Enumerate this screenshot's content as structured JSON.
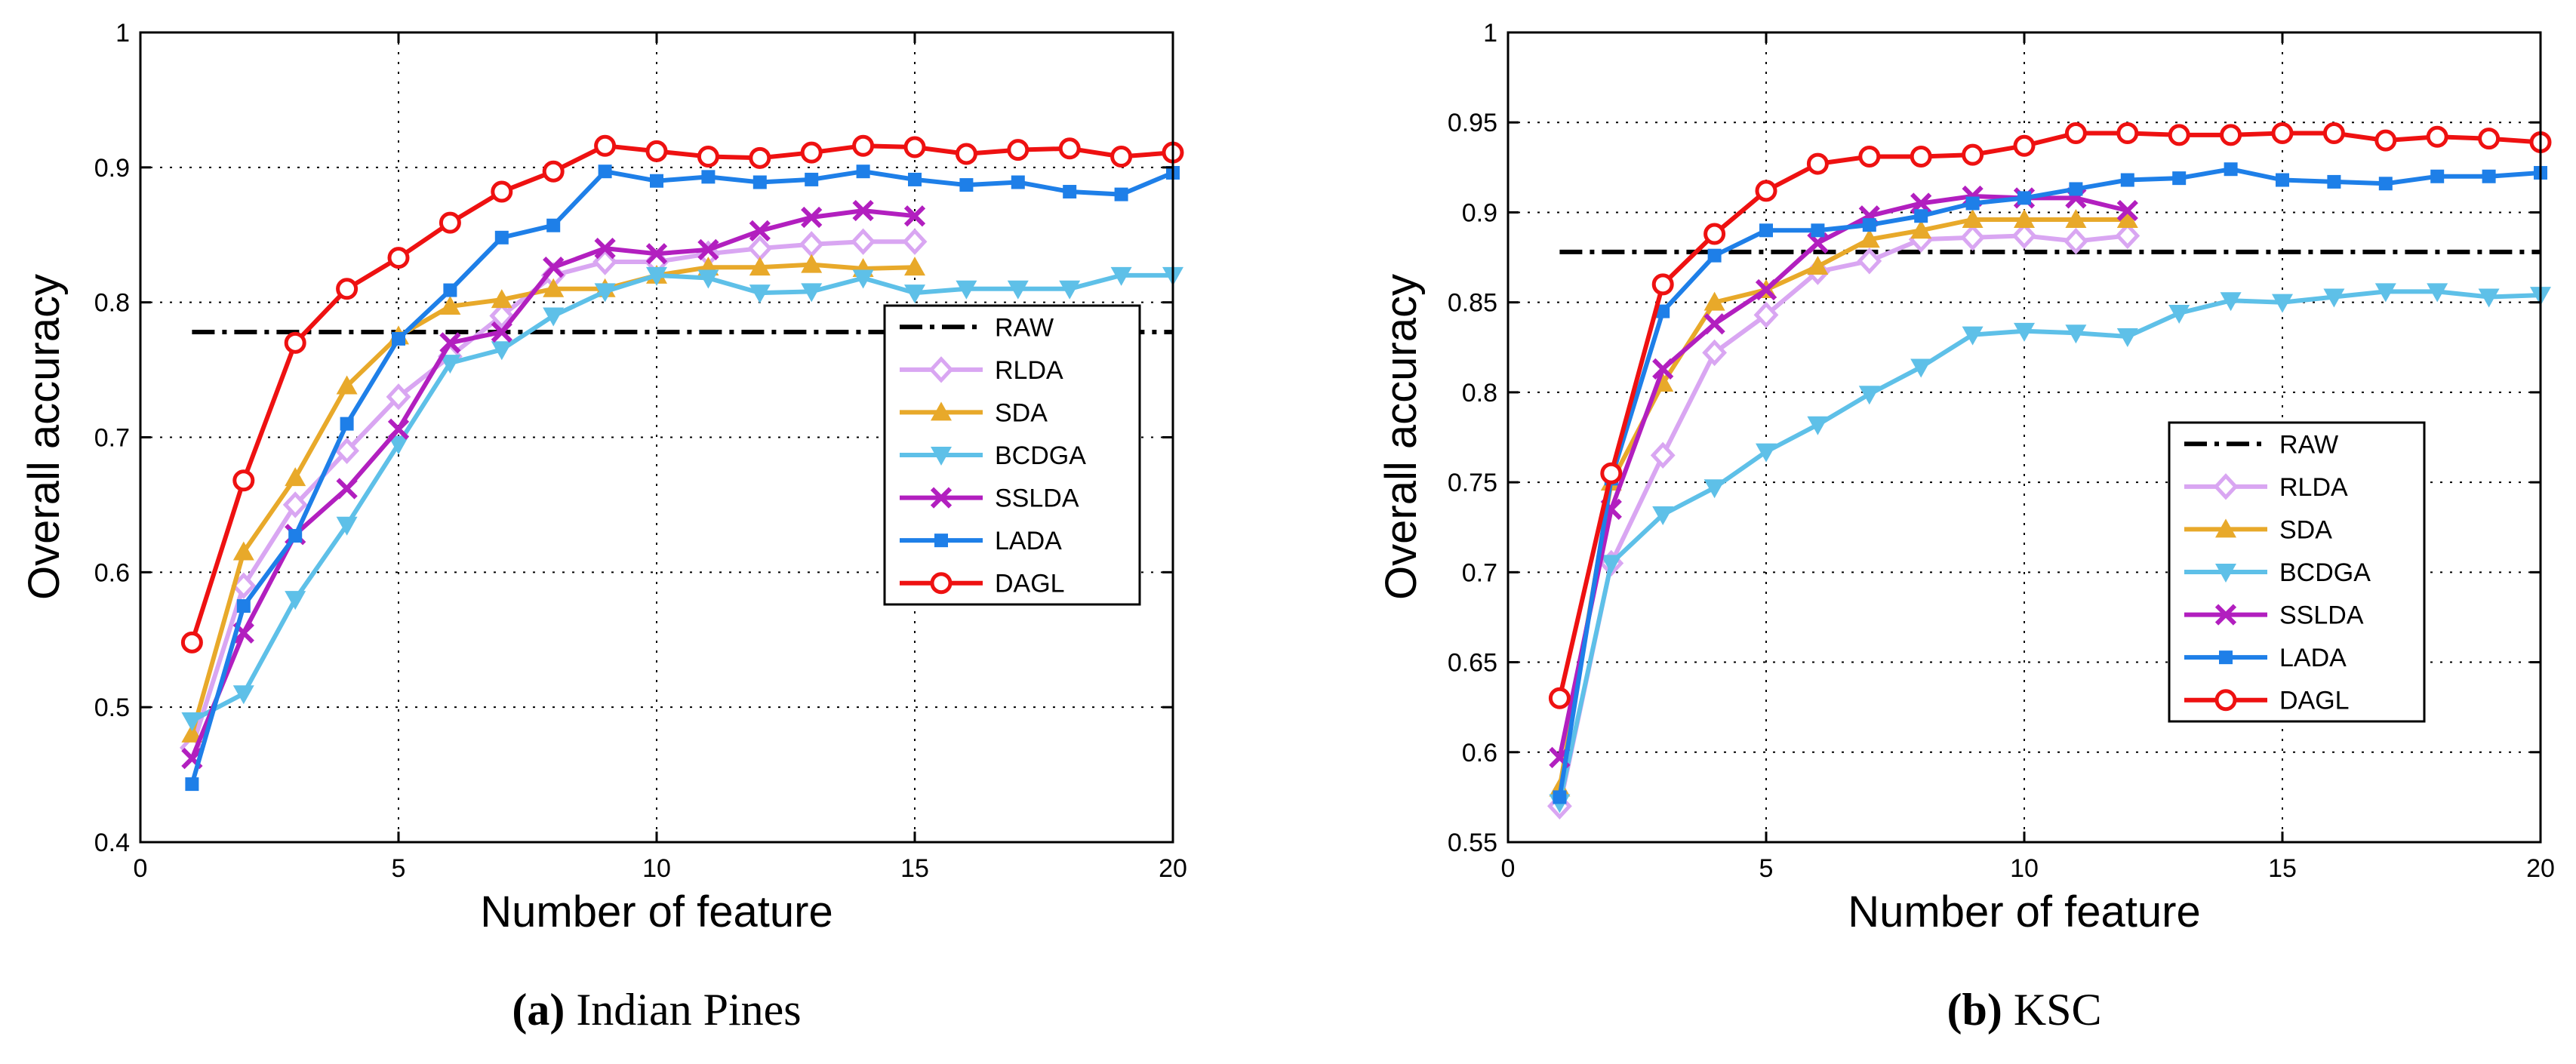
{
  "chart_data": [
    {
      "type": "line",
      "caption": {
        "letter": "(a)",
        "text": "Indian Pines"
      },
      "xlabel": "Number of feature",
      "ylabel": "Overall accuracy",
      "xlim": [
        0,
        20
      ],
      "ylim": [
        0.4,
        1
      ],
      "xticks": [
        0,
        5,
        10,
        15,
        20
      ],
      "yticks": [
        0.4,
        0.5,
        0.6,
        0.7,
        0.8,
        0.9,
        1
      ],
      "ytick_labels": [
        "0.4",
        "0.5",
        "0.6",
        "0.7",
        "0.8",
        "0.9",
        "1"
      ],
      "grid": true,
      "legend_position": "middle-right",
      "baseline": {
        "name": "RAW",
        "y": 0.778,
        "x_range": [
          1,
          20
        ],
        "color": "#000000"
      },
      "series": [
        {
          "name": "RLDA",
          "color": "#d9a6f2",
          "marker": "diamond",
          "x": [
            1,
            2,
            3,
            4,
            5,
            6,
            7,
            8,
            9,
            10,
            11,
            12,
            13,
            14,
            15
          ],
          "values": [
            0.47,
            0.59,
            0.65,
            0.69,
            0.73,
            0.76,
            0.79,
            0.82,
            0.83,
            0.83,
            0.836,
            0.84,
            0.843,
            0.845,
            0.845
          ]
        },
        {
          "name": "SDA",
          "color": "#e8a92a",
          "marker": "triangle-up",
          "x": [
            1,
            2,
            3,
            4,
            5,
            6,
            7,
            8,
            9,
            10,
            11,
            12,
            13,
            14,
            15
          ],
          "values": [
            0.48,
            0.615,
            0.67,
            0.738,
            0.775,
            0.797,
            0.802,
            0.81,
            0.81,
            0.82,
            0.826,
            0.826,
            0.828,
            0.825,
            0.826
          ]
        },
        {
          "name": "BCDGA",
          "color": "#5ec0e8",
          "marker": "triangle-down",
          "x": [
            1,
            2,
            3,
            4,
            5,
            6,
            7,
            8,
            9,
            10,
            11,
            12,
            13,
            14,
            15,
            16,
            17,
            18,
            19,
            20
          ],
          "values": [
            0.49,
            0.51,
            0.58,
            0.635,
            0.695,
            0.755,
            0.765,
            0.79,
            0.808,
            0.82,
            0.818,
            0.807,
            0.808,
            0.818,
            0.807,
            0.81,
            0.81,
            0.81,
            0.82,
            0.82
          ]
        },
        {
          "name": "SSLDA",
          "color": "#b21fbf",
          "marker": "x",
          "x": [
            1,
            2,
            3,
            4,
            5,
            6,
            7,
            8,
            9,
            10,
            11,
            12,
            13,
            14,
            15
          ],
          "values": [
            0.462,
            0.555,
            0.628,
            0.662,
            0.706,
            0.77,
            0.778,
            0.826,
            0.84,
            0.836,
            0.839,
            0.853,
            0.863,
            0.868,
            0.864
          ]
        },
        {
          "name": "LADA",
          "color": "#1e7fe8",
          "marker": "square",
          "x": [
            1,
            2,
            3,
            4,
            5,
            6,
            7,
            8,
            9,
            10,
            11,
            12,
            13,
            14,
            15,
            16,
            17,
            18,
            19,
            20
          ],
          "values": [
            0.443,
            0.575,
            0.627,
            0.71,
            0.773,
            0.809,
            0.848,
            0.857,
            0.897,
            0.89,
            0.893,
            0.889,
            0.891,
            0.897,
            0.891,
            0.887,
            0.889,
            0.882,
            0.88,
            0.896
          ]
        },
        {
          "name": "DAGL",
          "color": "#ee1111",
          "marker": "circle",
          "x": [
            1,
            2,
            3,
            4,
            5,
            6,
            7,
            8,
            9,
            10,
            11,
            12,
            13,
            14,
            15,
            16,
            17,
            18,
            19,
            20
          ],
          "values": [
            0.548,
            0.668,
            0.77,
            0.81,
            0.833,
            0.859,
            0.882,
            0.897,
            0.916,
            0.912,
            0.908,
            0.907,
            0.911,
            0.916,
            0.915,
            0.91,
            0.913,
            0.914,
            0.908,
            0.911
          ]
        }
      ]
    },
    {
      "type": "line",
      "caption": {
        "letter": "(b)",
        "text": "KSC"
      },
      "xlabel": "Number of feature",
      "ylabel": "Overall accuracy",
      "xlim": [
        0,
        20
      ],
      "ylim": [
        0.55,
        1
      ],
      "xticks": [
        0,
        5,
        10,
        15,
        20
      ],
      "yticks": [
        0.55,
        0.6,
        0.65,
        0.7,
        0.75,
        0.8,
        0.85,
        0.9,
        0.95,
        1
      ],
      "ytick_labels": [
        "0.55",
        "0.6",
        "0.65",
        "0.7",
        "0.75",
        "0.8",
        "0.85",
        "0.9",
        "0.95",
        "1"
      ],
      "grid": true,
      "legend_position": "bottom-right",
      "baseline": {
        "name": "RAW",
        "y": 0.878,
        "x_range": [
          1,
          20
        ],
        "color": "#000000"
      },
      "series": [
        {
          "name": "RLDA",
          "color": "#d9a6f2",
          "marker": "diamond",
          "x": [
            1,
            2,
            3,
            4,
            5,
            6,
            7,
            8,
            9,
            10,
            11,
            12
          ],
          "values": [
            0.57,
            0.705,
            0.765,
            0.822,
            0.843,
            0.867,
            0.873,
            0.885,
            0.886,
            0.887,
            0.884,
            0.887
          ]
        },
        {
          "name": "SDA",
          "color": "#e8a92a",
          "marker": "triangle-up",
          "x": [
            1,
            2,
            3,
            4,
            5,
            6,
            7,
            8,
            9,
            10,
            11,
            12
          ],
          "values": [
            0.58,
            0.75,
            0.805,
            0.85,
            0.857,
            0.87,
            0.885,
            0.89,
            0.896,
            0.896,
            0.896,
            0.896
          ]
        },
        {
          "name": "BCDGA",
          "color": "#5ec0e8",
          "marker": "triangle-down",
          "x": [
            1,
            2,
            3,
            4,
            5,
            6,
            7,
            8,
            9,
            10,
            11,
            12,
            13,
            14,
            15,
            16,
            17,
            18,
            19,
            20
          ],
          "values": [
            0.572,
            0.705,
            0.732,
            0.747,
            0.767,
            0.782,
            0.799,
            0.814,
            0.832,
            0.834,
            0.833,
            0.831,
            0.844,
            0.851,
            0.85,
            0.853,
            0.856,
            0.856,
            0.853,
            0.854
          ]
        },
        {
          "name": "SSLDA",
          "color": "#b21fbf",
          "marker": "x",
          "x": [
            1,
            2,
            3,
            4,
            5,
            6,
            7,
            8,
            9,
            10,
            11,
            12
          ],
          "values": [
            0.597,
            0.735,
            0.813,
            0.838,
            0.857,
            0.883,
            0.898,
            0.905,
            0.909,
            0.908,
            0.908,
            0.901
          ]
        },
        {
          "name": "LADA",
          "color": "#1e7fe8",
          "marker": "square",
          "x": [
            1,
            2,
            3,
            4,
            5,
            6,
            7,
            8,
            9,
            10,
            11,
            12,
            13,
            14,
            15,
            16,
            17,
            18,
            19,
            20
          ],
          "values": [
            0.575,
            0.752,
            0.845,
            0.876,
            0.89,
            0.89,
            0.893,
            0.898,
            0.905,
            0.908,
            0.913,
            0.918,
            0.919,
            0.924,
            0.918,
            0.917,
            0.916,
            0.92,
            0.92,
            0.922
          ]
        },
        {
          "name": "DAGL",
          "color": "#ee1111",
          "marker": "circle",
          "x": [
            1,
            2,
            3,
            4,
            5,
            6,
            7,
            8,
            9,
            10,
            11,
            12,
            13,
            14,
            15,
            16,
            17,
            18,
            19,
            20
          ],
          "values": [
            0.63,
            0.755,
            0.86,
            0.888,
            0.912,
            0.927,
            0.931,
            0.931,
            0.932,
            0.937,
            0.944,
            0.944,
            0.943,
            0.943,
            0.944,
            0.944,
            0.94,
            0.942,
            0.941,
            0.939
          ]
        }
      ]
    }
  ]
}
